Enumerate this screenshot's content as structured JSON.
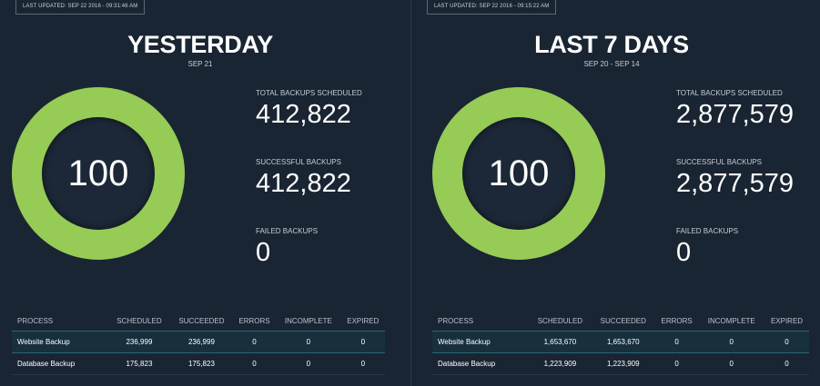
{
  "panels": [
    {
      "last_updated": "LAST UPDATED: SEP 22 2016 - 09:31:46 AM",
      "title": "YESTERDAY",
      "date_range": "SEP 21",
      "ring": {
        "value": "100",
        "percent": 100,
        "color": "#96cb55"
      },
      "stats": {
        "total_label": "TOTAL BACKUPS SCHEDULED",
        "total_value": "412,822",
        "success_label": "SUCCESSFUL BACKUPS",
        "success_value": "412,822",
        "failed_label": "FAILED BACKUPS",
        "failed_value": "0"
      },
      "table": {
        "headers": [
          "PROCESS",
          "SCHEDULED",
          "SUCCEEDED",
          "ERRORS",
          "INCOMPLETE",
          "EXPIRED"
        ],
        "rows": [
          [
            "Website Backup",
            "236,999",
            "236,999",
            "0",
            "0",
            "0"
          ],
          [
            "Database Backup",
            "175,823",
            "175,823",
            "0",
            "0",
            "0"
          ]
        ]
      }
    },
    {
      "last_updated": "LAST UPDATED: SEP 22 2016 - 09:15:22 AM",
      "title": "LAST 7 DAYS",
      "date_range": "SEP 20 - SEP 14",
      "ring": {
        "value": "100",
        "percent": 100,
        "color": "#96cb55"
      },
      "stats": {
        "total_label": "TOTAL BACKUPS SCHEDULED",
        "total_value": "2,877,579",
        "success_label": "SUCCESSFUL BACKUPS",
        "success_value": "2,877,579",
        "failed_label": "FAILED BACKUPS",
        "failed_value": "0"
      },
      "table": {
        "headers": [
          "PROCESS",
          "SCHEDULED",
          "SUCCEEDED",
          "ERRORS",
          "INCOMPLETE",
          "EXPIRED"
        ],
        "rows": [
          [
            "Website Backup",
            "1,653,670",
            "1,653,670",
            "0",
            "0",
            "0"
          ],
          [
            "Database Backup",
            "1,223,909",
            "1,223,909",
            "0",
            "0",
            "0"
          ]
        ]
      }
    }
  ],
  "colors": {
    "background": "#1a2533",
    "ring_green": "#96cb55",
    "highlight_row": "#17303c"
  }
}
